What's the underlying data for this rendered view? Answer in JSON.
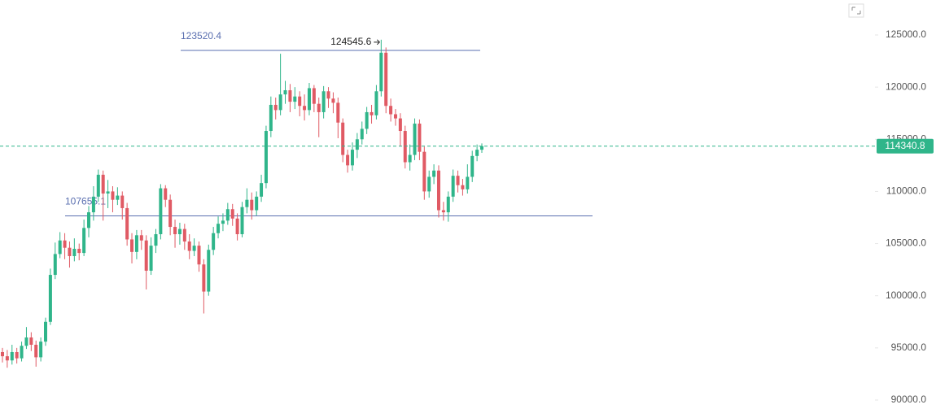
{
  "chart_data": {
    "type": "candlestick",
    "up_color": "#2fb58a",
    "down_color": "#e05a64",
    "level_color": "#5a6fb0",
    "ylim": [
      89142,
      128352
    ],
    "yticks": [
      {
        "value": 125000,
        "label": "125000.0"
      },
      {
        "value": 120000,
        "label": "120000.0"
      },
      {
        "value": 115000,
        "label": "115000.0"
      },
      {
        "value": 110000,
        "label": "110000.0"
      },
      {
        "value": 105000,
        "label": "105000.0"
      },
      {
        "value": 100000,
        "label": "100000.0"
      },
      {
        "value": 95000,
        "label": "95000.0"
      },
      {
        "value": 90000,
        "label": "90000.0"
      }
    ],
    "levels": [
      {
        "value": 123520.4
      },
      {
        "value": 107655.1
      }
    ],
    "open": [
      94600,
      94200,
      93800,
      94600,
      94000,
      95200,
      96000,
      95300,
      94100,
      95600,
      97500,
      102000,
      104000,
      105300,
      104600,
      103800,
      104500,
      104100,
      106500,
      108000,
      109500,
      111600,
      109800,
      110000,
      109200,
      109600,
      108400,
      105400,
      104200,
      105800,
      105300,
      102400,
      104800,
      105900,
      110300,
      109200,
      106600,
      105900,
      106400,
      105200,
      104300,
      104800,
      103000,
      100400,
      104400,
      106000,
      106900,
      107200,
      108300,
      107400,
      105900,
      108500,
      109200,
      108200,
      109500,
      110800,
      115800,
      118300,
      117800,
      119300,
      119700,
      118600,
      119100,
      118200,
      117800,
      119900,
      118400,
      117600,
      119600,
      118900,
      118500,
      116600,
      113500,
      112500,
      114000,
      115000,
      116000,
      117600,
      117300,
      119600,
      123300,
      118200,
      117400,
      117000,
      115800,
      112800,
      113500,
      116500,
      113800,
      110000,
      111400,
      112000,
      108200,
      108000,
      109500,
      111500,
      110600,
      110200,
      111400,
      113400,
      114000
    ],
    "high": [
      95000,
      94800,
      95300,
      95000,
      95600,
      97000,
      96500,
      95700,
      96000,
      97900,
      102600,
      105100,
      106100,
      106000,
      105200,
      105500,
      105000,
      107300,
      108600,
      110500,
      112100,
      112000,
      111100,
      110500,
      110400,
      110000,
      108900,
      106000,
      106300,
      106300,
      105800,
      105600,
      106400,
      110700,
      110600,
      109700,
      107300,
      107000,
      106900,
      105900,
      105500,
      105200,
      103500,
      104900,
      106600,
      107600,
      107900,
      108900,
      108800,
      107900,
      109000,
      110300,
      109900,
      110000,
      111600,
      116300,
      119100,
      119000,
      123200,
      120600,
      120300,
      120000,
      119600,
      119300,
      120400,
      120200,
      119000,
      120100,
      120000,
      119500,
      119000,
      117000,
      114000,
      114700,
      115600,
      116700,
      118100,
      118300,
      120200,
      124545.6,
      123800,
      118900,
      117900,
      117500,
      116300,
      114500,
      117000,
      116900,
      114300,
      112000,
      112600,
      112500,
      109000,
      110000,
      112100,
      112000,
      111200,
      112600,
      113900,
      114500,
      114600
    ],
    "low": [
      93600,
      93100,
      93400,
      93500,
      93700,
      94900,
      94700,
      93200,
      93700,
      95200,
      97200,
      101600,
      103600,
      103500,
      102700,
      103300,
      103400,
      103800,
      105600,
      107200,
      109000,
      107200,
      108400,
      108000,
      108700,
      107300,
      104800,
      103100,
      103500,
      104400,
      100600,
      102000,
      104100,
      105400,
      108500,
      105800,
      104600,
      104900,
      104400,
      103500,
      103800,
      102300,
      98300,
      100000,
      103900,
      105500,
      106200,
      106800,
      106700,
      105300,
      105600,
      107900,
      107300,
      107700,
      109000,
      110300,
      115200,
      116900,
      117300,
      118400,
      117600,
      117900,
      117200,
      116800,
      117300,
      117600,
      115200,
      117000,
      118000,
      117500,
      115100,
      112800,
      111800,
      112000,
      113200,
      114500,
      115500,
      116500,
      116900,
      119100,
      117500,
      116700,
      116300,
      114300,
      112200,
      112000,
      113000,
      113000,
      109200,
      109400,
      110700,
      107500,
      107200,
      107100,
      109000,
      109900,
      109600,
      109800,
      110900,
      112900,
      113700
    ],
    "close": [
      94200,
      93800,
      94600,
      94000,
      95200,
      96000,
      95300,
      94100,
      95600,
      97500,
      102000,
      104000,
      105300,
      104600,
      103800,
      104500,
      104100,
      106500,
      108000,
      109500,
      111600,
      109800,
      110000,
      109200,
      109600,
      108400,
      105400,
      104200,
      105800,
      105300,
      102400,
      104800,
      105900,
      110300,
      109200,
      106600,
      105900,
      106400,
      105200,
      104300,
      104800,
      103000,
      100400,
      104400,
      106000,
      106900,
      107200,
      108300,
      107400,
      105900,
      108500,
      109200,
      108200,
      109500,
      110800,
      115800,
      118300,
      117800,
      119300,
      119700,
      118600,
      119100,
      118200,
      117800,
      119900,
      118400,
      117600,
      119600,
      118900,
      118500,
      116600,
      113500,
      112500,
      114000,
      115000,
      116000,
      117600,
      117300,
      119600,
      123300,
      118200,
      117400,
      117000,
      115800,
      112800,
      113500,
      116500,
      113800,
      110000,
      111400,
      112000,
      108200,
      108000,
      109500,
      111500,
      110600,
      110200,
      111400,
      113400,
      114000,
      114340.8
    ]
  }
}
